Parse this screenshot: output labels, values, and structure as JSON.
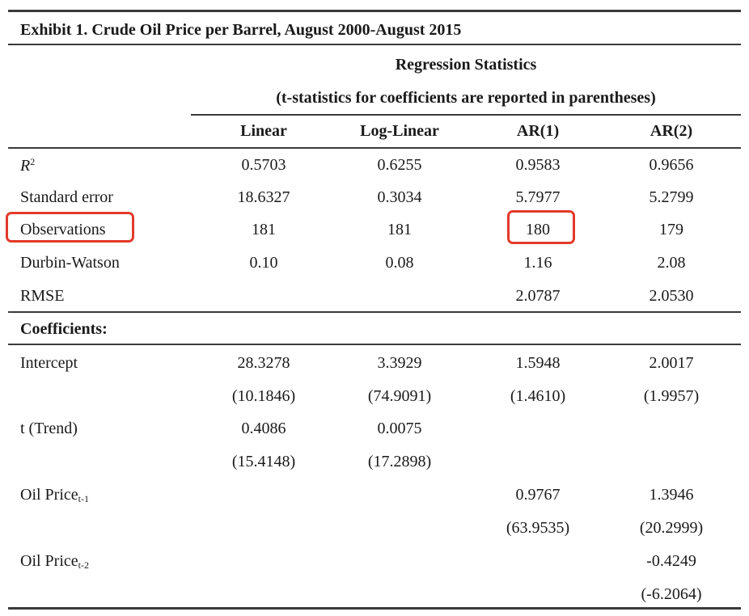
{
  "title": "Exhibit 1. Crude Oil Price per Barrel, August 2000-August 2015",
  "header": {
    "group_title": "Regression Statistics",
    "group_note": "(t-statistics for coefficients are reported in parentheses)",
    "columns": [
      "Linear",
      "Log-Linear",
      "AR(1)",
      "AR(2)"
    ]
  },
  "stats_rows": [
    {
      "label": "R",
      "label_sup": "2",
      "values": [
        "0.5703",
        "0.6255",
        "0.9583",
        "0.9656"
      ]
    },
    {
      "label": "Standard error",
      "values": [
        "18.6327",
        "0.3034",
        "5.7977",
        "5.2799"
      ]
    },
    {
      "label": "Observations",
      "values": [
        "181",
        "181",
        "180",
        "179"
      ]
    },
    {
      "label": "Durbin-Watson",
      "values": [
        "0.10",
        "0.08",
        "1.16",
        "2.08"
      ]
    },
    {
      "label": "RMSE",
      "values": [
        "",
        "",
        "2.0787",
        "2.0530"
      ]
    }
  ],
  "coefficients_label": "Coefficients:",
  "coef_rows": [
    {
      "label": "Intercept",
      "values": [
        "28.3278",
        "3.3929",
        "1.5948",
        "2.0017"
      ],
      "tstats": [
        "(10.1846)",
        "(74.9091)",
        "(1.4610)",
        "(1.9957)"
      ]
    },
    {
      "label": "t (Trend)",
      "values": [
        "0.4086",
        "0.0075",
        "",
        ""
      ],
      "tstats": [
        "(15.4148)",
        "(17.2898)",
        "",
        ""
      ]
    },
    {
      "label": "Oil Price",
      "label_sub": "t-1",
      "values": [
        "",
        "",
        "0.9767",
        "1.3946"
      ],
      "tstats": [
        "",
        "",
        "(63.9535)",
        "(20.2999)"
      ]
    },
    {
      "label": "Oil Price",
      "label_sub": "t-2",
      "values": [
        "",
        "",
        "",
        "-0.4249"
      ],
      "tstats": [
        "",
        "",
        "",
        "(-6.2064)"
      ]
    }
  ],
  "highlight_color": "#e23a2a"
}
